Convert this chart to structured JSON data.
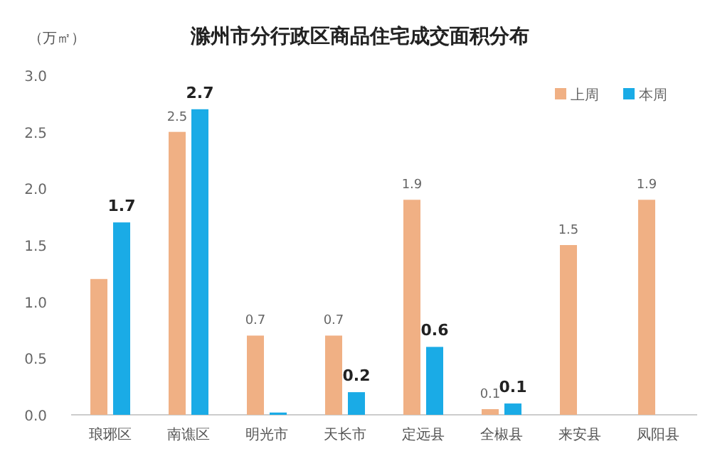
{
  "chart_data": {
    "type": "bar",
    "title": "滁州市分行政区商品住宅成交面积分布",
    "ylabel": "（万㎡）",
    "categories": [
      "琅琊区",
      "南谯区",
      "明光市",
      "天长市",
      "定远县",
      "全椒县",
      "来安县",
      "凤阳县"
    ],
    "series": [
      {
        "name": "上周",
        "color": "#f0b084",
        "values": [
          1.2,
          2.5,
          0.7,
          0.7,
          1.9,
          0.05,
          1.5,
          1.9
        ],
        "value_labels": [
          null,
          "2.5",
          "0.7",
          "0.7",
          "1.9",
          "0.1",
          "1.5",
          "1.9"
        ]
      },
      {
        "name": "本周",
        "color": "#1aabe6",
        "values": [
          1.7,
          2.7,
          0.02,
          0.2,
          0.6,
          0.1,
          null,
          null
        ],
        "value_labels": [
          "1.7",
          "2.7",
          null,
          "0.2",
          "0.6",
          "0.1",
          null,
          null
        ]
      }
    ],
    "ylim": [
      0,
      3
    ],
    "yticks": [
      {
        "value": 0,
        "label": "0.0"
      },
      {
        "value": 0.5,
        "label": "0.5"
      },
      {
        "value": 1,
        "label": "1.0"
      },
      {
        "value": 1.5,
        "label": "1.5"
      },
      {
        "value": 2,
        "label": "2.0"
      },
      {
        "value": 2.5,
        "label": "2.5"
      },
      {
        "value": 3,
        "label": "3.0"
      }
    ],
    "legend": "top right"
  }
}
